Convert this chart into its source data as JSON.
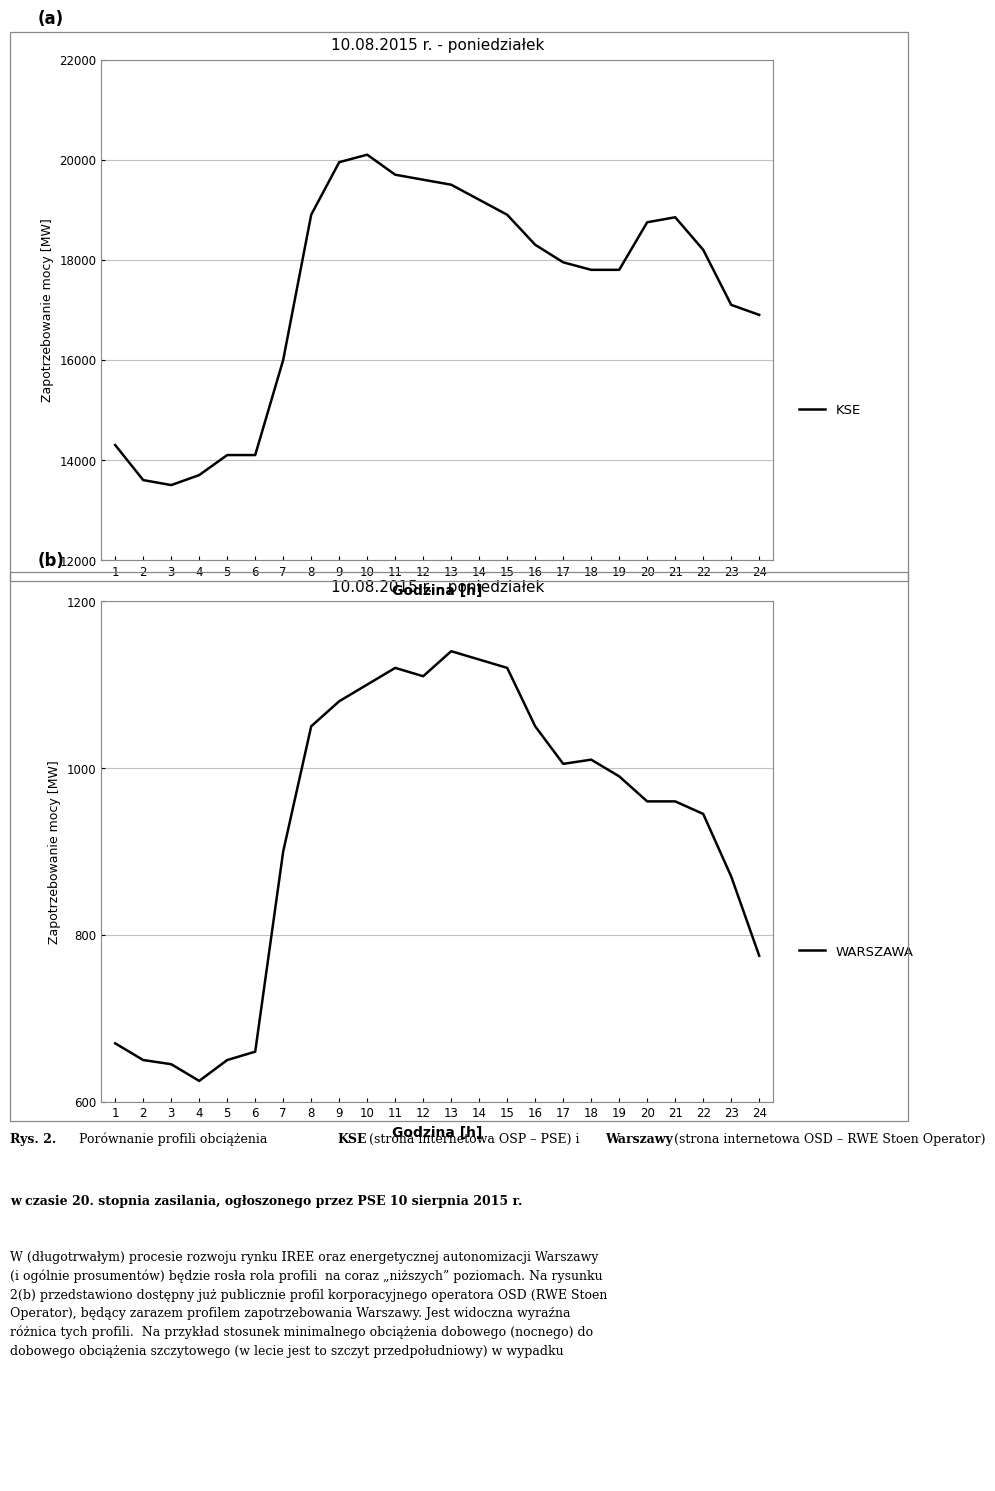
{
  "title_a": "10.08.2015 r. - poniedziałek",
  "title_b": "10.08.2015 r. - poniedziałek",
  "label_a": "(a)",
  "label_b": "(b)",
  "ylabel": "Zapotrzebowanie mocy [MW]",
  "xlabel": "Godzina [h]",
  "legend_kse": "KSE",
  "legend_warszawa": "WARSZAWA",
  "hours": [
    1,
    2,
    3,
    4,
    5,
    6,
    7,
    8,
    9,
    10,
    11,
    12,
    13,
    14,
    15,
    16,
    17,
    18,
    19,
    20,
    21,
    22,
    23,
    24
  ],
  "kse_values": [
    14300,
    13600,
    13500,
    13700,
    14100,
    14100,
    16000,
    18900,
    19950,
    20100,
    19700,
    19600,
    19500,
    19200,
    18900,
    18300,
    17950,
    17800,
    17800,
    18750,
    18850,
    18200,
    17100,
    16900
  ],
  "warszawa_values": [
    670,
    650,
    645,
    625,
    650,
    660,
    900,
    1050,
    1080,
    1100,
    1120,
    1110,
    1140,
    1130,
    1120,
    1050,
    1005,
    1010,
    990,
    960,
    960,
    945,
    870,
    775
  ],
  "kse_ylim": [
    12000,
    22000
  ],
  "kse_yticks": [
    12000,
    14000,
    16000,
    18000,
    20000,
    22000
  ],
  "warszawa_ylim": [
    600,
    1200
  ],
  "warszawa_yticks": [
    600,
    800,
    1000,
    1200
  ],
  "line_color": "#000000",
  "line_width": 1.8,
  "grid_color": "#c0c0c0",
  "bg_color": "#ffffff",
  "caption_plain": "Rys. 2.  Porównanie profili obciążenia KSE (strona internetowa OSP – PSE) i Warszawy (strona internetowa OSD – RWE Stoen Operator) w czasie 20. stopnia zasilania, ogłoszonego przez PSE 10 sierpnia 2015 r.",
  "body_text": "W (długotrwałym) procesie rozwoju rynku IREE oraz energetycznej autonomizacji Warszawy (i ogólnie prosumentów) będzie rosła rola profili  na coraz „niższych” poziomach. Na rysunku 2(b) przedstawiono dostępny już publicznie profil korporacyjnego operatora OSD (RWE Stoen Operator), będący zarazem profilem zapotrzebowania Warszawy. Jest widoczna wyraźna różnica tych profili.  Na przykład stosunek minimalnego obciążenia dobowego (nocnego) do dobowego obciążenia szczytowego (w lecie jest to szczyt przedpołudniowy) w wypadku"
}
